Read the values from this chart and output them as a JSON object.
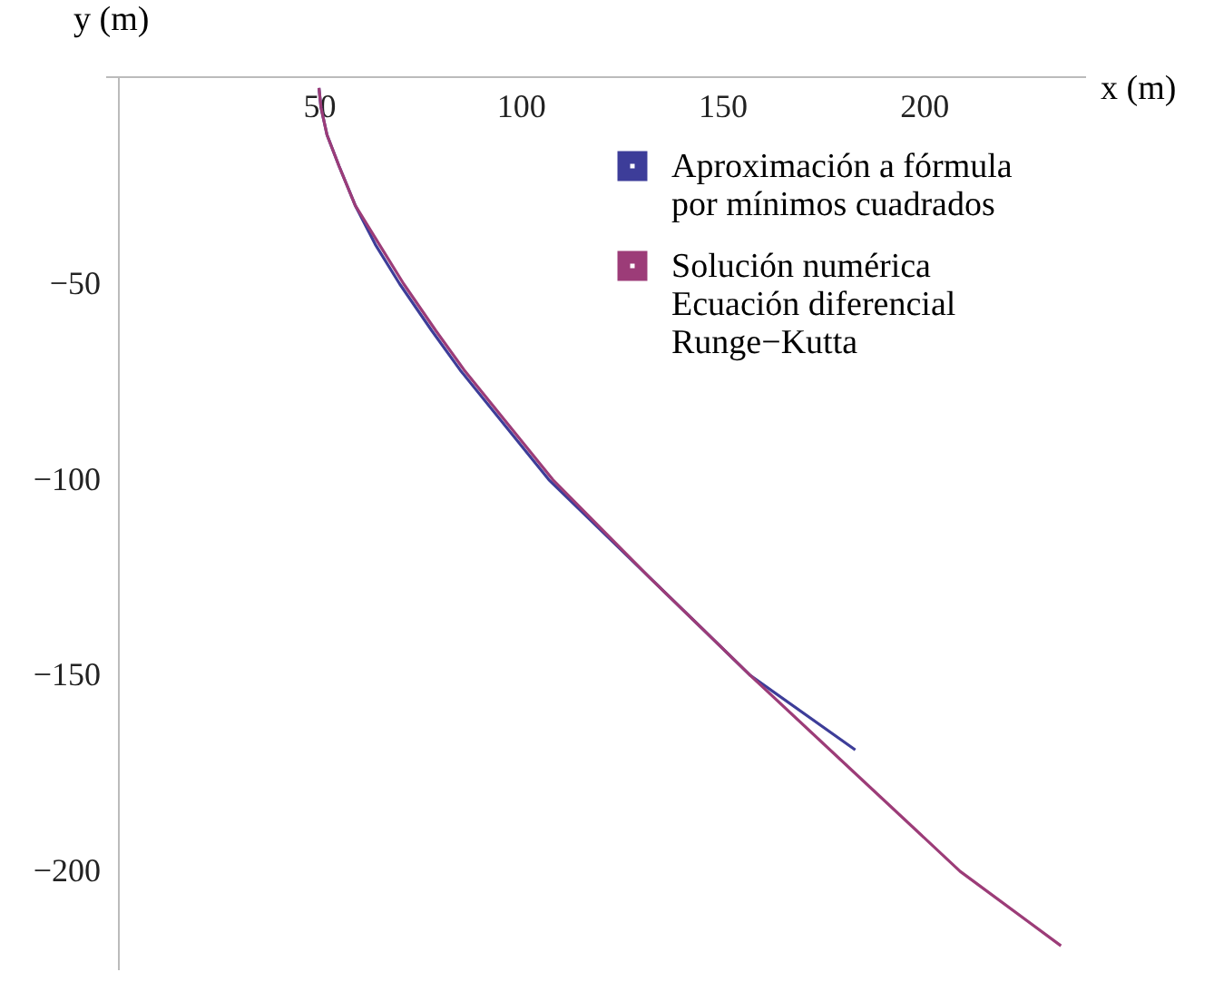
{
  "chart_data": {
    "type": "line",
    "xlabel": "x (m)",
    "ylabel": "y (m)",
    "xlim": [
      -3,
      240
    ],
    "ylim": [
      -225,
      3
    ],
    "xticks": [
      50,
      100,
      150,
      200
    ],
    "yticks": [
      -50,
      -100,
      -150,
      -200
    ],
    "grid": false,
    "legend": "top right",
    "line_style": "solid",
    "marker": "none",
    "series": [
      {
        "name": "Aproximación a fórmula\npor mínimos cuadrados",
        "color": "#3d3d99",
        "x": [
          50,
          50.5,
          52,
          55,
          59,
          64,
          70,
          78,
          85,
          107,
          132,
          157,
          183
        ],
        "values": [
          0,
          -5,
          -12,
          -20,
          -30,
          -40,
          -50,
          -62,
          -72,
          -100,
          -125,
          -150,
          -169
        ]
      },
      {
        "name": "Solución numérica\nEcuación diferencial\nRunge−Kutta",
        "color": "#9c3c78",
        "x": [
          50,
          50.5,
          52,
          55,
          59,
          65,
          71,
          79,
          86,
          108,
          132,
          157,
          183,
          209,
          234
        ],
        "values": [
          0,
          -5,
          -12,
          -20,
          -30,
          -40,
          -50,
          -62,
          -72,
          -100,
          -125,
          -150,
          -175,
          -200,
          -219
        ]
      }
    ]
  }
}
